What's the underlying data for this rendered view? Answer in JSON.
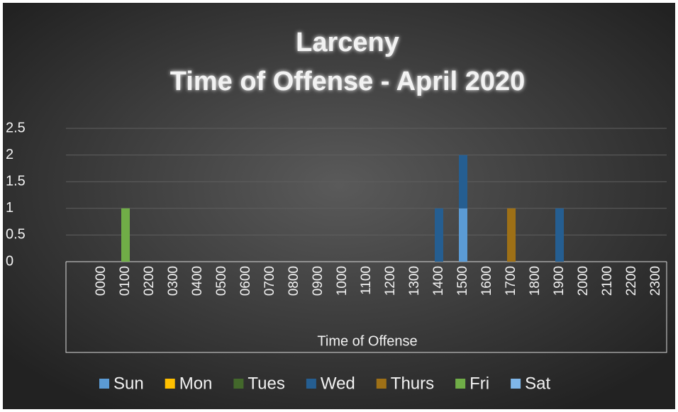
{
  "chart_data": {
    "type": "stacked_bar",
    "title": "Larceny",
    "subtitle": "Time of Offense - April 2020",
    "x_label": "Time of Offense",
    "categories": [
      "0000",
      "0100",
      "0200",
      "0300",
      "0400",
      "0500",
      "0600",
      "0700",
      "0800",
      "0900",
      "1000",
      "1100",
      "1200",
      "1300",
      "1400",
      "1500",
      "1600",
      "1700",
      "1800",
      "1900",
      "2000",
      "2100",
      "2200",
      "2300"
    ],
    "series": [
      {
        "name": "Sun",
        "color": "#5b9bd5",
        "values": [
          0,
          0,
          0,
          0,
          0,
          0,
          0,
          0,
          0,
          0,
          0,
          0,
          0,
          0,
          0,
          1,
          0,
          0,
          0,
          0,
          0,
          0,
          0,
          0
        ]
      },
      {
        "name": "Mon",
        "color": "#ffc000",
        "values": [
          0,
          0,
          0,
          0,
          0,
          0,
          0,
          0,
          0,
          0,
          0,
          0,
          0,
          0,
          0,
          0,
          0,
          0,
          0,
          0,
          0,
          0,
          0,
          0
        ]
      },
      {
        "name": "Tues",
        "color": "#43682b",
        "values": [
          0,
          0,
          0,
          0,
          0,
          0,
          0,
          0,
          0,
          0,
          0,
          0,
          0,
          0,
          0,
          0,
          0,
          0,
          0,
          0,
          0,
          0,
          0,
          0
        ]
      },
      {
        "name": "Wed",
        "color": "#255e91",
        "values": [
          0,
          0,
          0,
          0,
          0,
          0,
          0,
          0,
          0,
          0,
          0,
          0,
          0,
          0,
          1,
          1,
          0,
          0,
          0,
          1,
          0,
          0,
          0,
          0
        ]
      },
      {
        "name": "Thurs",
        "color": "#9e7016",
        "values": [
          0,
          0,
          0,
          0,
          0,
          0,
          0,
          0,
          0,
          0,
          0,
          0,
          0,
          0,
          0,
          0,
          0,
          1,
          0,
          0,
          0,
          0,
          0,
          0
        ]
      },
      {
        "name": "Fri",
        "color": "#70ad47",
        "values": [
          0,
          1,
          0,
          0,
          0,
          0,
          0,
          0,
          0,
          0,
          0,
          0,
          0,
          0,
          0,
          0,
          0,
          0,
          0,
          0,
          0,
          0,
          0,
          0
        ]
      },
      {
        "name": "Sat",
        "color": "#7fb6e8",
        "values": [
          0,
          0,
          0,
          0,
          0,
          0,
          0,
          0,
          0,
          0,
          0,
          0,
          0,
          0,
          0,
          0,
          0,
          0,
          0,
          0,
          0,
          0,
          0,
          0
        ]
      }
    ],
    "ylim": [
      0,
      2.5
    ],
    "yticks": [
      0,
      0.5,
      1,
      1.5,
      2,
      2.5
    ],
    "grid": true,
    "legend": "bottom"
  }
}
